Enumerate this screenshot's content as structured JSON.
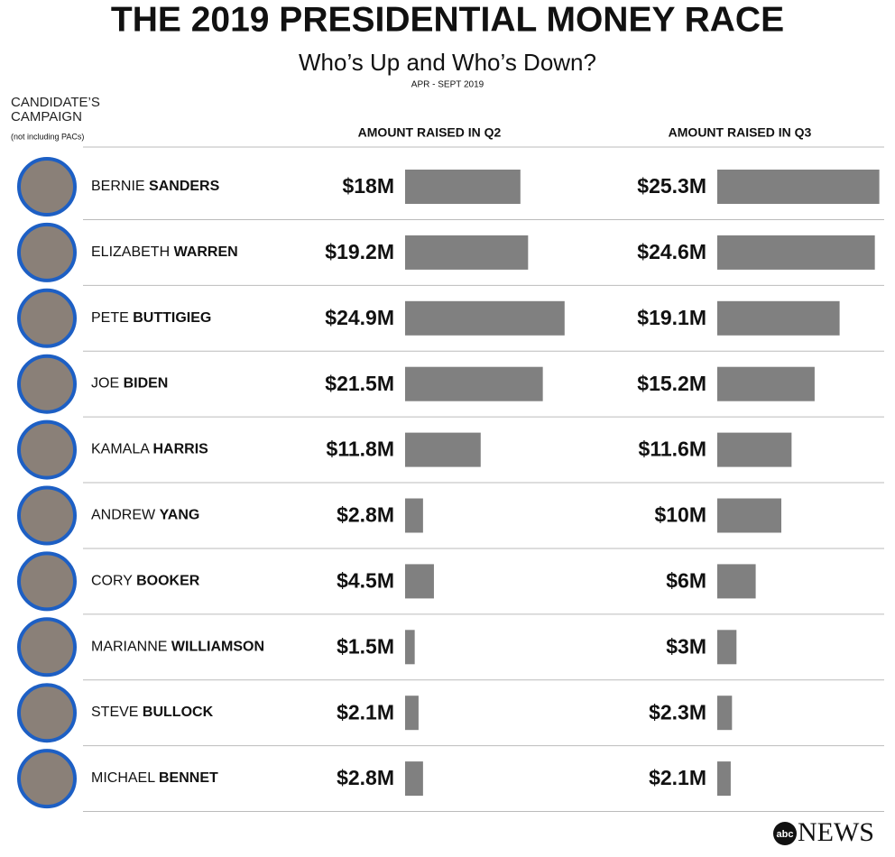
{
  "chart_data": {
    "type": "bar",
    "title": "THE 2019 PRESIDENTIAL MONEY RACE",
    "subtitle": "Who’s Up and Who’s Down?",
    "date_range": "APR - SEPT 2019",
    "category_header": "CANDIDATE’S CAMPAIGN",
    "category_note": "(not including PACs)",
    "categories": [
      [
        "BERNIE",
        "SANDERS"
      ],
      [
        "ELIZABETH",
        "WARREN"
      ],
      [
        "PETE",
        "BUTTIGIEG"
      ],
      [
        "JOE",
        "BIDEN"
      ],
      [
        "KAMALA",
        "HARRIS"
      ],
      [
        "ANDREW",
        "YANG"
      ],
      [
        "CORY",
        "BOOKER"
      ],
      [
        "MARIANNE",
        "WILLIAMSON"
      ],
      [
        "STEVE",
        "BULLOCK"
      ],
      [
        "MICHAEL",
        "BENNET"
      ]
    ],
    "series": [
      {
        "name": "AMOUNT RAISED IN Q2",
        "color": "#808080",
        "values": [
          18,
          19.2,
          24.9,
          21.5,
          11.8,
          2.8,
          4.5,
          1.5,
          2.1,
          2.8
        ],
        "value_labels": [
          "$18M",
          "$19.2M",
          "$24.9M",
          "$21.5M",
          "$11.8M",
          "$2.8M",
          "$4.5M",
          "$1.5M",
          "$2.1M",
          "$2.8M"
        ]
      },
      {
        "name": "AMOUNT RAISED IN Q3",
        "color": "#808080",
        "values": [
          25.3,
          24.6,
          19.1,
          15.2,
          11.6,
          10,
          6,
          3,
          2.3,
          2.1
        ],
        "value_labels": [
          "$25.3M",
          "$24.6M",
          "$19.1M",
          "$15.2M",
          "$11.6M",
          "$10M",
          "$6M",
          "$3M",
          "$2.3M",
          "$2.1M"
        ]
      }
    ],
    "logo": {
      "mark": "abc",
      "word": "NEWS"
    }
  }
}
